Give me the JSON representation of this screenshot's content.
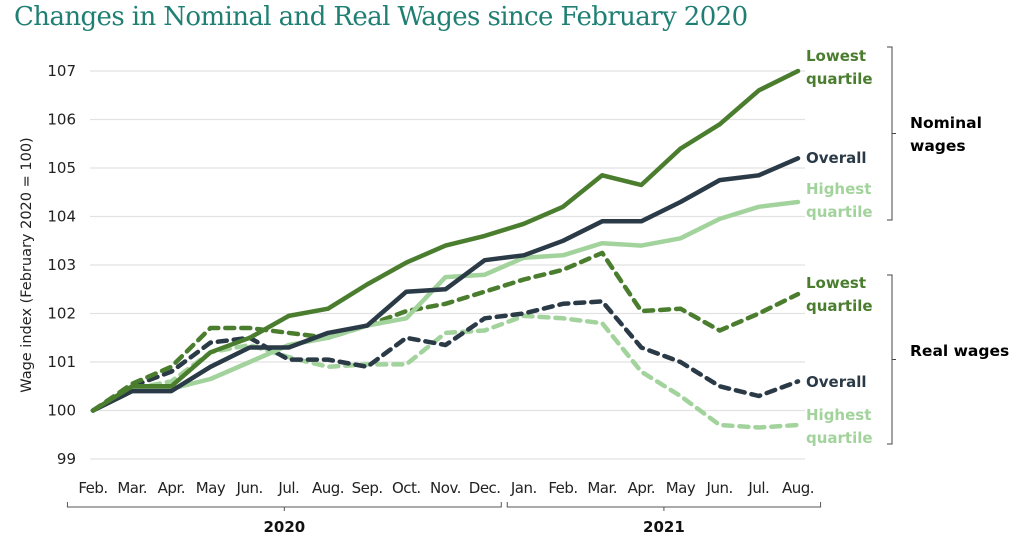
{
  "chart_data": {
    "type": "line",
    "title": "Changes in Nominal and Real Wages since February 2020",
    "xlabel": "",
    "ylabel": "Wage index (February 2020 = 100)",
    "ylim": [
      99,
      107
    ],
    "yticks": [
      99,
      100,
      101,
      102,
      103,
      104,
      105,
      106,
      107
    ],
    "grid": true,
    "categories": [
      "Feb.",
      "Mar.",
      "Apr.",
      "May",
      "Jun.",
      "Jul.",
      "Aug.",
      "Sep.",
      "Oct.",
      "Nov.",
      "Dec.",
      "Jan.",
      "Feb.",
      "Mar.",
      "Apr.",
      "May",
      "Jun.",
      "Jul.",
      "Aug."
    ],
    "year_groups": [
      {
        "label": "2020",
        "start": 0,
        "end": 10
      },
      {
        "label": "2021",
        "start": 11,
        "end": 18
      }
    ],
    "legend_placement": "right (inline end labels)",
    "groups": [
      {
        "label": "Nominal wages",
        "series": [
          0,
          1,
          2
        ]
      },
      {
        "label": "Real wages",
        "series": [
          3,
          4,
          5
        ]
      }
    ],
    "series": [
      {
        "name": "Nominal - Lowest quartile",
        "label_lines": [
          "Lowest",
          "quartile"
        ],
        "color": "#4a7d2e",
        "dashed": false,
        "values": [
          100,
          100.5,
          100.5,
          101.2,
          101.5,
          101.95,
          102.1,
          102.6,
          103.05,
          103.4,
          103.6,
          103.85,
          104.2,
          104.85,
          104.65,
          105.4,
          105.9,
          106.6,
          107.0
        ]
      },
      {
        "name": "Nominal - Overall",
        "label_lines": [
          "Overall"
        ],
        "color": "#2b3a47",
        "dashed": false,
        "values": [
          100,
          100.4,
          100.4,
          100.9,
          101.3,
          101.3,
          101.6,
          101.75,
          102.45,
          102.5,
          103.1,
          103.2,
          103.5,
          103.9,
          103.9,
          104.3,
          104.75,
          104.85,
          105.2
        ]
      },
      {
        "name": "Nominal - Highest quartile",
        "label_lines": [
          "Highest",
          "quartile"
        ],
        "color": "#a3d39c",
        "dashed": false,
        "values": [
          100,
          100.4,
          100.45,
          100.65,
          101.0,
          101.35,
          101.5,
          101.75,
          101.9,
          102.75,
          102.8,
          103.15,
          103.2,
          103.45,
          103.4,
          103.55,
          103.95,
          104.2,
          104.3
        ]
      },
      {
        "name": "Real - Lowest quartile",
        "label_lines": [
          "Lowest",
          "quartile"
        ],
        "color": "#4a7d2e",
        "dashed": true,
        "values": [
          100,
          100.55,
          100.9,
          101.7,
          101.7,
          101.6,
          101.5,
          101.75,
          102.05,
          102.2,
          102.45,
          102.7,
          102.9,
          103.25,
          102.05,
          102.1,
          101.65,
          102.0,
          102.4
        ]
      },
      {
        "name": "Real - Overall",
        "label_lines": [
          "Overall"
        ],
        "color": "#2b3a47",
        "dashed": true,
        "values": [
          100,
          100.5,
          100.8,
          101.4,
          101.5,
          101.05,
          101.05,
          100.9,
          101.5,
          101.35,
          101.9,
          102.0,
          102.2,
          102.25,
          101.3,
          101.0,
          100.5,
          100.3,
          100.6
        ]
      },
      {
        "name": "Real - Highest quartile",
        "label_lines": [
          "Highest",
          "quartile"
        ],
        "color": "#a3d39c",
        "dashed": true,
        "values": [
          100,
          100.45,
          100.6,
          101.2,
          101.35,
          101.1,
          100.9,
          100.95,
          100.95,
          101.6,
          101.65,
          101.95,
          101.9,
          101.8,
          100.8,
          100.3,
          99.7,
          99.65,
          99.7
        ]
      }
    ]
  }
}
